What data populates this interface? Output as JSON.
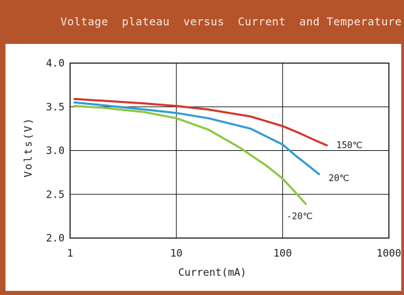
{
  "header": {
    "title": "Voltage  plateau  versus  Current  and Temperature"
  },
  "colors": {
    "frame": "#b5532a",
    "title_text": "#f4ede2",
    "panel": "#ffffff",
    "series_150": "#d2342c",
    "series_20": "#2f9ad6",
    "series_m20": "#8cc63e"
  },
  "chart_data": {
    "type": "line",
    "title": "Voltage  plateau  versus  Current  and Temperature",
    "xlabel": "Current(mA)",
    "ylabel": "Volts(V)",
    "xscale": "log",
    "xlim": [
      1,
      1000
    ],
    "ylim": [
      2.0,
      4.0
    ],
    "x_ticks": [
      1,
      10,
      100,
      1000
    ],
    "x_tick_labels": [
      "1",
      "10",
      "100",
      "1000"
    ],
    "y_ticks": [
      2.0,
      2.5,
      3.0,
      3.5,
      4.0
    ],
    "y_tick_labels": [
      "2.0",
      "2.5",
      "3.0",
      "3.5",
      "4.0"
    ],
    "grid": true,
    "legend": "inline labels at line ends",
    "series": [
      {
        "name": "150℃",
        "color": "#d2342c",
        "x": [
          1.1,
          2,
          5,
          10,
          20,
          50,
          100,
          150,
          200,
          260
        ],
        "y": [
          3.59,
          3.57,
          3.54,
          3.51,
          3.47,
          3.39,
          3.28,
          3.19,
          3.12,
          3.06
        ]
      },
      {
        "name": "20℃",
        "color": "#2f9ad6",
        "x": [
          1.1,
          2,
          5,
          10,
          20,
          50,
          100,
          130,
          170,
          220
        ],
        "y": [
          3.55,
          3.52,
          3.47,
          3.43,
          3.37,
          3.25,
          3.07,
          2.95,
          2.84,
          2.73
        ]
      },
      {
        "name": "-20℃",
        "color": "#8cc63e",
        "x": [
          1.1,
          2,
          5,
          10,
          20,
          40,
          70,
          100,
          130,
          165
        ],
        "y": [
          3.51,
          3.49,
          3.44,
          3.37,
          3.24,
          3.03,
          2.83,
          2.68,
          2.53,
          2.39
        ]
      }
    ]
  }
}
